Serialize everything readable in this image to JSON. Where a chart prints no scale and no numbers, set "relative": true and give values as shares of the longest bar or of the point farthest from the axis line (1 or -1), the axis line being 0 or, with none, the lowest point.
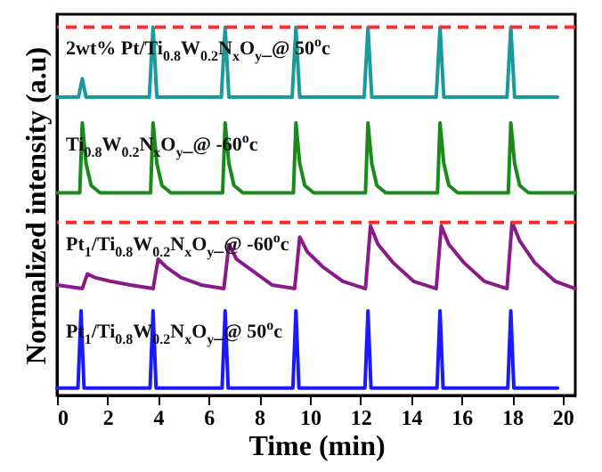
{
  "chart_data": {
    "type": "line",
    "relative": true,
    "xlabel": "Time (min)",
    "ylabel": "Normalized intensity (a.u)",
    "xlim": [
      0,
      20.5
    ],
    "xticks": [
      0,
      2,
      4,
      6,
      8,
      10,
      12,
      14,
      16,
      18,
      20
    ],
    "grid": false,
    "legend": false,
    "marker": "none",
    "line_style": "solid",
    "ref_lines": [
      {
        "axis": "y",
        "value": 1.0,
        "color": "#ff2a2a",
        "line_style": "dashed"
      },
      {
        "axis": "y",
        "value": 0.47,
        "color": "#ff2a2a",
        "line_style": "dashed"
      }
    ],
    "series": [
      {
        "name": "2wt% Pt/Ti$_{0.8}$W$_{0.2}$N$_{x}$O$_{y}$_@ 50$^{o}$c",
        "color": "#1a9a9a",
        "x": [
          0,
          0.85,
          1.0,
          1.15,
          3.65,
          3.8,
          3.95,
          6.5,
          6.65,
          6.8,
          9.3,
          9.45,
          9.6,
          12.15,
          12.3,
          12.45,
          15.0,
          15.15,
          15.3,
          17.8,
          17.95,
          18.1,
          19.8
        ],
        "values": [
          0.81,
          0.81,
          0.86,
          0.81,
          0.81,
          1.0,
          0.81,
          0.81,
          1.0,
          0.81,
          0.81,
          1.0,
          0.81,
          0.81,
          1.0,
          0.81,
          0.81,
          1.0,
          0.81,
          0.81,
          1.0,
          0.81,
          0.81
        ]
      },
      {
        "name": "Ti$_{0.8}$W$_{0.2}$N$_{x}$O$_{y}$_@ -60$^{o}$c",
        "color": "#1a8a1a",
        "x": [
          0,
          0.9,
          1.0,
          1.15,
          1.35,
          1.7,
          3.7,
          3.8,
          3.95,
          4.15,
          4.5,
          6.55,
          6.65,
          6.8,
          7.0,
          7.35,
          9.35,
          9.45,
          9.6,
          9.8,
          10.15,
          12.2,
          12.3,
          12.45,
          12.65,
          13.0,
          15.05,
          15.15,
          15.3,
          15.5,
          15.85,
          17.85,
          17.95,
          18.1,
          18.3,
          18.65,
          20.5
        ],
        "values": [
          0.55,
          0.55,
          0.74,
          0.63,
          0.57,
          0.55,
          0.55,
          0.74,
          0.63,
          0.57,
          0.55,
          0.55,
          0.74,
          0.63,
          0.57,
          0.55,
          0.55,
          0.74,
          0.63,
          0.57,
          0.55,
          0.55,
          0.74,
          0.63,
          0.57,
          0.55,
          0.55,
          0.74,
          0.63,
          0.57,
          0.55,
          0.55,
          0.74,
          0.63,
          0.57,
          0.55,
          0.55
        ]
      },
      {
        "name": "Pt$_{1}$/Ti$_{0.8}$W$_{0.2}$N$_{x}$O$_{y}$_@ -60$^{o}$c",
        "color": "#8a1a8a",
        "x": [
          0,
          1.0,
          1.2,
          1.5,
          2.1,
          2.9,
          3.8,
          4.0,
          4.3,
          4.9,
          5.7,
          6.6,
          6.8,
          7.1,
          7.7,
          8.5,
          9.4,
          9.6,
          9.9,
          10.5,
          11.3,
          12.2,
          12.4,
          12.7,
          13.3,
          14.1,
          15.0,
          15.2,
          15.5,
          16.1,
          16.9,
          17.8,
          18.0,
          18.3,
          18.9,
          19.7,
          20.5
        ],
        "values": [
          0.3,
          0.29,
          0.33,
          0.32,
          0.31,
          0.3,
          0.29,
          0.37,
          0.35,
          0.32,
          0.3,
          0.29,
          0.41,
          0.37,
          0.34,
          0.3,
          0.29,
          0.43,
          0.39,
          0.35,
          0.31,
          0.29,
          0.46,
          0.41,
          0.36,
          0.31,
          0.29,
          0.46,
          0.41,
          0.36,
          0.31,
          0.29,
          0.47,
          0.42,
          0.36,
          0.31,
          0.29
        ]
      },
      {
        "name": "Pt$_{1}$/Ti$_{0.8}$W$_{0.2}$N$_{x}$O$_{y}$_@ 50$^{o}$c",
        "color": "#1a1aff",
        "x": [
          0,
          0.83,
          0.95,
          1.07,
          3.68,
          3.8,
          3.92,
          6.53,
          6.65,
          6.77,
          9.33,
          9.45,
          9.57,
          12.18,
          12.3,
          12.42,
          15.03,
          15.15,
          15.27,
          17.83,
          17.95,
          18.07,
          19.8
        ],
        "values": [
          0.02,
          0.02,
          0.23,
          0.02,
          0.02,
          0.23,
          0.02,
          0.02,
          0.23,
          0.02,
          0.02,
          0.23,
          0.02,
          0.02,
          0.23,
          0.02,
          0.02,
          0.23,
          0.02,
          0.02,
          0.23,
          0.02,
          0.02
        ]
      }
    ]
  }
}
